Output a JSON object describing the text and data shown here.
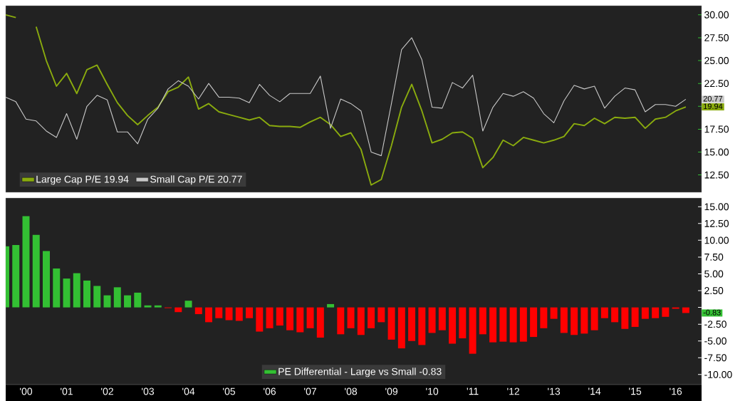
{
  "chart_data": [
    {
      "type": "line",
      "x": [
        "2000-01",
        "2000-04",
        "2000-07",
        "2000-10",
        "2001-01",
        "2001-04",
        "2001-07",
        "2001-10",
        "2002-01",
        "2002-04",
        "2002-07",
        "2002-10",
        "2003-01",
        "2003-04",
        "2003-07",
        "2003-10",
        "2004-01",
        "2004-04",
        "2004-07",
        "2004-10",
        "2005-01",
        "2005-04",
        "2005-07",
        "2005-10",
        "2006-01",
        "2006-04",
        "2006-07",
        "2006-10",
        "2007-01",
        "2007-04",
        "2007-07",
        "2007-10",
        "2008-01",
        "2008-04",
        "2008-07",
        "2008-10",
        "2009-01",
        "2009-04",
        "2009-07",
        "2009-10",
        "2010-01",
        "2010-04",
        "2010-07",
        "2010-10",
        "2011-01",
        "2011-04",
        "2011-07",
        "2011-10",
        "2012-01",
        "2012-04",
        "2012-07",
        "2012-10",
        "2013-01",
        "2013-04",
        "2013-07",
        "2013-10",
        "2014-01",
        "2014-04",
        "2014-07",
        "2014-10",
        "2015-01",
        "2015-04",
        "2015-07",
        "2015-10",
        "2016-01",
        "2016-04",
        "2016-07",
        "2016-10"
      ],
      "series": [
        {
          "name": "Large Cap P/E 19.94",
          "color": "#8aab0e",
          "values": [
            30.0,
            29.7,
            null,
            28.7,
            25.0,
            22.2,
            23.6,
            21.4,
            24.0,
            24.5,
            22.4,
            20.4,
            19.0,
            18.0,
            19.0,
            19.9,
            21.6,
            22.1,
            23.2,
            19.7,
            20.3,
            19.4,
            19.1,
            18.8,
            18.5,
            18.8,
            17.9,
            17.8,
            17.8,
            17.7,
            18.3,
            18.8,
            18.0,
            16.7,
            17.1,
            15.3,
            11.4,
            12.0,
            15.7,
            19.9,
            22.4,
            19.5,
            16.0,
            16.4,
            17.1,
            17.2,
            16.5,
            13.3,
            14.4,
            16.3,
            15.7,
            16.6,
            16.3,
            16.0,
            16.3,
            16.7,
            18.1,
            17.9,
            18.7,
            18.1,
            18.8,
            18.7,
            18.8,
            17.6,
            18.6,
            18.8,
            19.5,
            19.94
          ]
        },
        {
          "name": "Small Cap P/E 20.77",
          "color": "#c8c8c8",
          "values": [
            21.0,
            20.5,
            18.6,
            18.4,
            17.3,
            16.6,
            19.2,
            16.4,
            20.0,
            21.2,
            20.7,
            17.2,
            17.2,
            15.9,
            18.6,
            19.8,
            21.9,
            22.8,
            22.2,
            20.8,
            22.5,
            21.0,
            21.0,
            20.9,
            20.4,
            22.4,
            21.2,
            20.5,
            21.4,
            21.4,
            21.4,
            23.3,
            17.6,
            20.8,
            20.3,
            19.5,
            15.0,
            14.6,
            20.3,
            26.2,
            27.5,
            25.1,
            19.9,
            19.8,
            22.6,
            22.0,
            23.4,
            17.3,
            19.9,
            21.4,
            21.1,
            21.6,
            20.9,
            19.2,
            18.2,
            20.6,
            22.3,
            21.9,
            22.2,
            19.8,
            21.1,
            22.0,
            21.8,
            19.4,
            20.2,
            20.2,
            20.0,
            20.77
          ]
        }
      ],
      "xlim": [
        "2000-01",
        "2017-02-21"
      ],
      "ylim": [
        10.6,
        31
      ],
      "yticks": [
        {
          "value": 12.5,
          "label": "12.50"
        },
        {
          "value": 15,
          "label": "15.00"
        },
        {
          "value": 17.5,
          "label": "17.50"
        },
        {
          "value": 20,
          "label": null
        },
        {
          "value": 22.5,
          "label": "22.50"
        },
        {
          "value": 25,
          "label": "25.00"
        },
        {
          "value": 27.5,
          "label": "27.50"
        },
        {
          "value": 30,
          "label": "30.00"
        }
      ],
      "tick_labels": "y",
      "legend": "bottom left",
      "annotations": [
        {
          "text": "19.94",
          "x": "2016-10",
          "y": 19.94
        },
        {
          "text": "20.77",
          "x": "2016-10",
          "y": 20.77
        }
      ]
    },
    {
      "type": "bar",
      "x": [
        "2000-01",
        "2000-04",
        "2000-07",
        "2000-10",
        "2001-01",
        "2001-04",
        "2001-07",
        "2001-10",
        "2002-01",
        "2002-04",
        "2002-07",
        "2002-10",
        "2003-01",
        "2003-04",
        "2003-07",
        "2003-10",
        "2004-01",
        "2004-04",
        "2004-07",
        "2004-10",
        "2005-01",
        "2005-04",
        "2005-07",
        "2005-10",
        "2006-01",
        "2006-04",
        "2006-07",
        "2006-10",
        "2007-01",
        "2007-04",
        "2007-07",
        "2007-10",
        "2008-01",
        "2008-04",
        "2008-07",
        "2008-10",
        "2009-01",
        "2009-04",
        "2009-07",
        "2009-10",
        "2010-01",
        "2010-04",
        "2010-07",
        "2010-10",
        "2011-01",
        "2011-04",
        "2011-07",
        "2011-10",
        "2012-01",
        "2012-04",
        "2012-07",
        "2012-10",
        "2013-01",
        "2013-04",
        "2013-07",
        "2013-10",
        "2014-01",
        "2014-04",
        "2014-07",
        "2014-10",
        "2015-01",
        "2015-04",
        "2015-07",
        "2015-10",
        "2016-01",
        "2016-04",
        "2016-07",
        "2016-10"
      ],
      "series": [
        {
          "name": "PE Differential - Large vs Small -0.83",
          "color": "#33c033",
          "values": [
            9.1,
            9.3,
            13.6,
            10.8,
            8.4,
            5.8,
            4.3,
            5.1,
            4.0,
            3.2,
            1.8,
            3.0,
            1.8,
            2.2,
            0.3,
            0.3,
            -0.1,
            -0.7,
            1.0,
            -1.0,
            -2.2,
            -1.6,
            -1.9,
            -2.0,
            -1.6,
            -3.6,
            -3.1,
            -2.7,
            -3.4,
            -3.7,
            -3.1,
            -4.5,
            0.5,
            -4.0,
            -3.1,
            -4.1,
            -3.1,
            -2.2,
            -4.8,
            -6.1,
            -5.0,
            -5.6,
            -3.8,
            -3.4,
            -5.4,
            -4.6,
            -6.9,
            -4.0,
            -5.2,
            -5.1,
            -5.2,
            -5.1,
            -4.4,
            -3.1,
            -1.7,
            -3.8,
            -4.1,
            -3.9,
            -3.4,
            -1.6,
            -2.2,
            -3.2,
            -2.9,
            -1.7,
            -1.6,
            -1.4,
            -0.2,
            -0.83
          ],
          "colors": [
            "#33c033",
            "#33c033",
            "#33c033",
            "#33c033",
            "#33c033",
            "#33c033",
            "#33c033",
            "#33c033",
            "#33c033",
            "#33c033",
            "#33c033",
            "#33c033",
            "#33c033",
            "#33c033",
            "#33c033",
            "#33c033",
            "#ff0000",
            "#ff0000",
            "#33c033",
            "#ff0000",
            "#ff0000",
            "#ff0000",
            "#ff0000",
            "#ff0000",
            "#ff0000",
            "#ff0000",
            "#ff0000",
            "#ff0000",
            "#ff0000",
            "#ff0000",
            "#ff0000",
            "#ff0000",
            "#33c033",
            "#ff0000",
            "#ff0000",
            "#ff0000",
            "#ff0000",
            "#ff0000",
            "#ff0000",
            "#ff0000",
            "#ff0000",
            "#ff0000",
            "#ff0000",
            "#ff0000",
            "#ff0000",
            "#ff0000",
            "#ff0000",
            "#ff0000",
            "#ff0000",
            "#ff0000",
            "#ff0000",
            "#ff0000",
            "#ff0000",
            "#ff0000",
            "#ff0000",
            "#ff0000",
            "#ff0000",
            "#ff0000",
            "#ff0000",
            "#ff0000",
            "#ff0000",
            "#ff0000",
            "#ff0000",
            "#ff0000",
            "#ff0000",
            "#ff0000",
            "#ff0000",
            "#ff0000"
          ]
        }
      ],
      "xlim": [
        "2000-01",
        "2017-02-21"
      ],
      "ylim": [
        -11.5,
        16.3
      ],
      "xticks": [
        {
          "value": "2000-07",
          "label": "'00"
        },
        {
          "value": "2001-07",
          "label": "'01"
        },
        {
          "value": "2002-07",
          "label": "'02"
        },
        {
          "value": "2003-07",
          "label": "'03"
        },
        {
          "value": "2004-07",
          "label": "'04"
        },
        {
          "value": "2005-07",
          "label": "'05"
        },
        {
          "value": "2006-07",
          "label": "'06"
        },
        {
          "value": "2007-07",
          "label": "'07"
        },
        {
          "value": "2008-07",
          "label": "'08"
        },
        {
          "value": "2009-07",
          "label": "'09"
        },
        {
          "value": "2010-07",
          "label": "'10"
        },
        {
          "value": "2011-07",
          "label": "'11"
        },
        {
          "value": "2012-07",
          "label": "'12"
        },
        {
          "value": "2013-07",
          "label": "'13"
        },
        {
          "value": "2014-07",
          "label": "'14"
        },
        {
          "value": "2015-07",
          "label": "'15"
        },
        {
          "value": "2016-07",
          "label": "'16"
        }
      ],
      "yticks": [
        {
          "value": -10,
          "label": "-10.00"
        },
        {
          "value": -7.5,
          "label": "-7.50"
        },
        {
          "value": -5,
          "label": "-5.00"
        },
        {
          "value": -2.5,
          "label": "-2.50"
        },
        {
          "value": 0,
          "label": null
        },
        {
          "value": 2.5,
          "label": "2.50"
        },
        {
          "value": 5,
          "label": "5.00"
        },
        {
          "value": 7.5,
          "label": "7.50"
        },
        {
          "value": 10,
          "label": "10.00"
        },
        {
          "value": 12.5,
          "label": "12.50"
        },
        {
          "value": 15,
          "label": "15.00"
        }
      ],
      "legend": "bottom",
      "annotations": [
        {
          "text": "-0.83",
          "x": "2016-10",
          "y": -0.83
        }
      ]
    }
  ]
}
